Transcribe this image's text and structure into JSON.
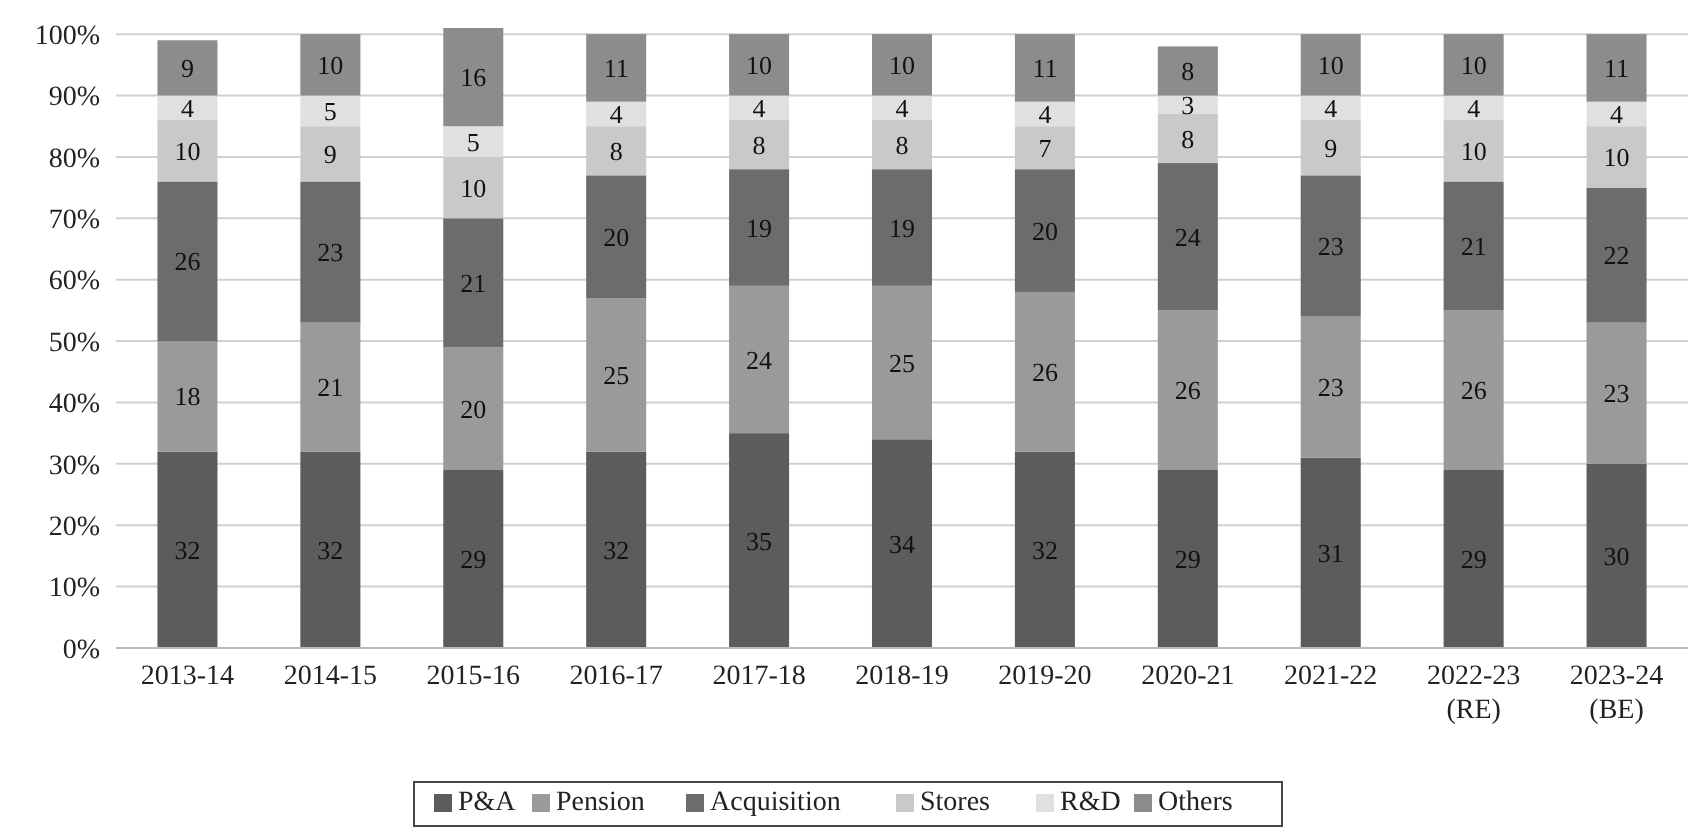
{
  "chart_data": {
    "type": "bar",
    "stacked": true,
    "categories": [
      "2013-14",
      "2014-15",
      "2015-16",
      "2016-17",
      "2017-18",
      "2018-19",
      "2019-20",
      "2020-21",
      "2021-22",
      "2022-23 (RE)",
      "2023-24 (BE)"
    ],
    "series": [
      {
        "name": "P&A",
        "color": "#5c5c5c",
        "values": [
          32,
          32,
          29,
          32,
          35,
          34,
          32,
          29,
          31,
          29,
          30
        ]
      },
      {
        "name": "Pension",
        "color": "#9a9a9a",
        "values": [
          18,
          21,
          20,
          25,
          24,
          25,
          26,
          26,
          23,
          26,
          23
        ]
      },
      {
        "name": "Acquisition",
        "color": "#6c6c6c",
        "values": [
          26,
          23,
          21,
          20,
          19,
          19,
          20,
          24,
          23,
          21,
          22
        ]
      },
      {
        "name": "Stores",
        "color": "#c9c9c9",
        "values": [
          10,
          9,
          10,
          8,
          8,
          8,
          7,
          8,
          9,
          10,
          10
        ]
      },
      {
        "name": "R&D",
        "color": "#e0e0e0",
        "values": [
          4,
          5,
          5,
          4,
          4,
          4,
          4,
          3,
          4,
          4,
          4
        ]
      },
      {
        "name": "Others",
        "color": "#8c8c8c",
        "values": [
          9,
          10,
          16,
          11,
          10,
          10,
          11,
          8,
          10,
          10,
          11
        ]
      }
    ],
    "ylim": [
      0,
      101
    ],
    "yticks": [
      {
        "value": 0,
        "label": "0%"
      },
      {
        "value": 10,
        "label": "10%"
      },
      {
        "value": 20,
        "label": "20%"
      },
      {
        "value": 30,
        "label": "30%"
      },
      {
        "value": 40,
        "label": "40%"
      },
      {
        "value": 50,
        "label": "50%"
      },
      {
        "value": 60,
        "label": "60%"
      },
      {
        "value": 70,
        "label": "70%"
      },
      {
        "value": 80,
        "label": "80%"
      },
      {
        "value": 90,
        "label": "90%"
      },
      {
        "value": 100,
        "label": "100%"
      }
    ],
    "grid": "y",
    "data_labels": true,
    "legend": "bottom"
  }
}
